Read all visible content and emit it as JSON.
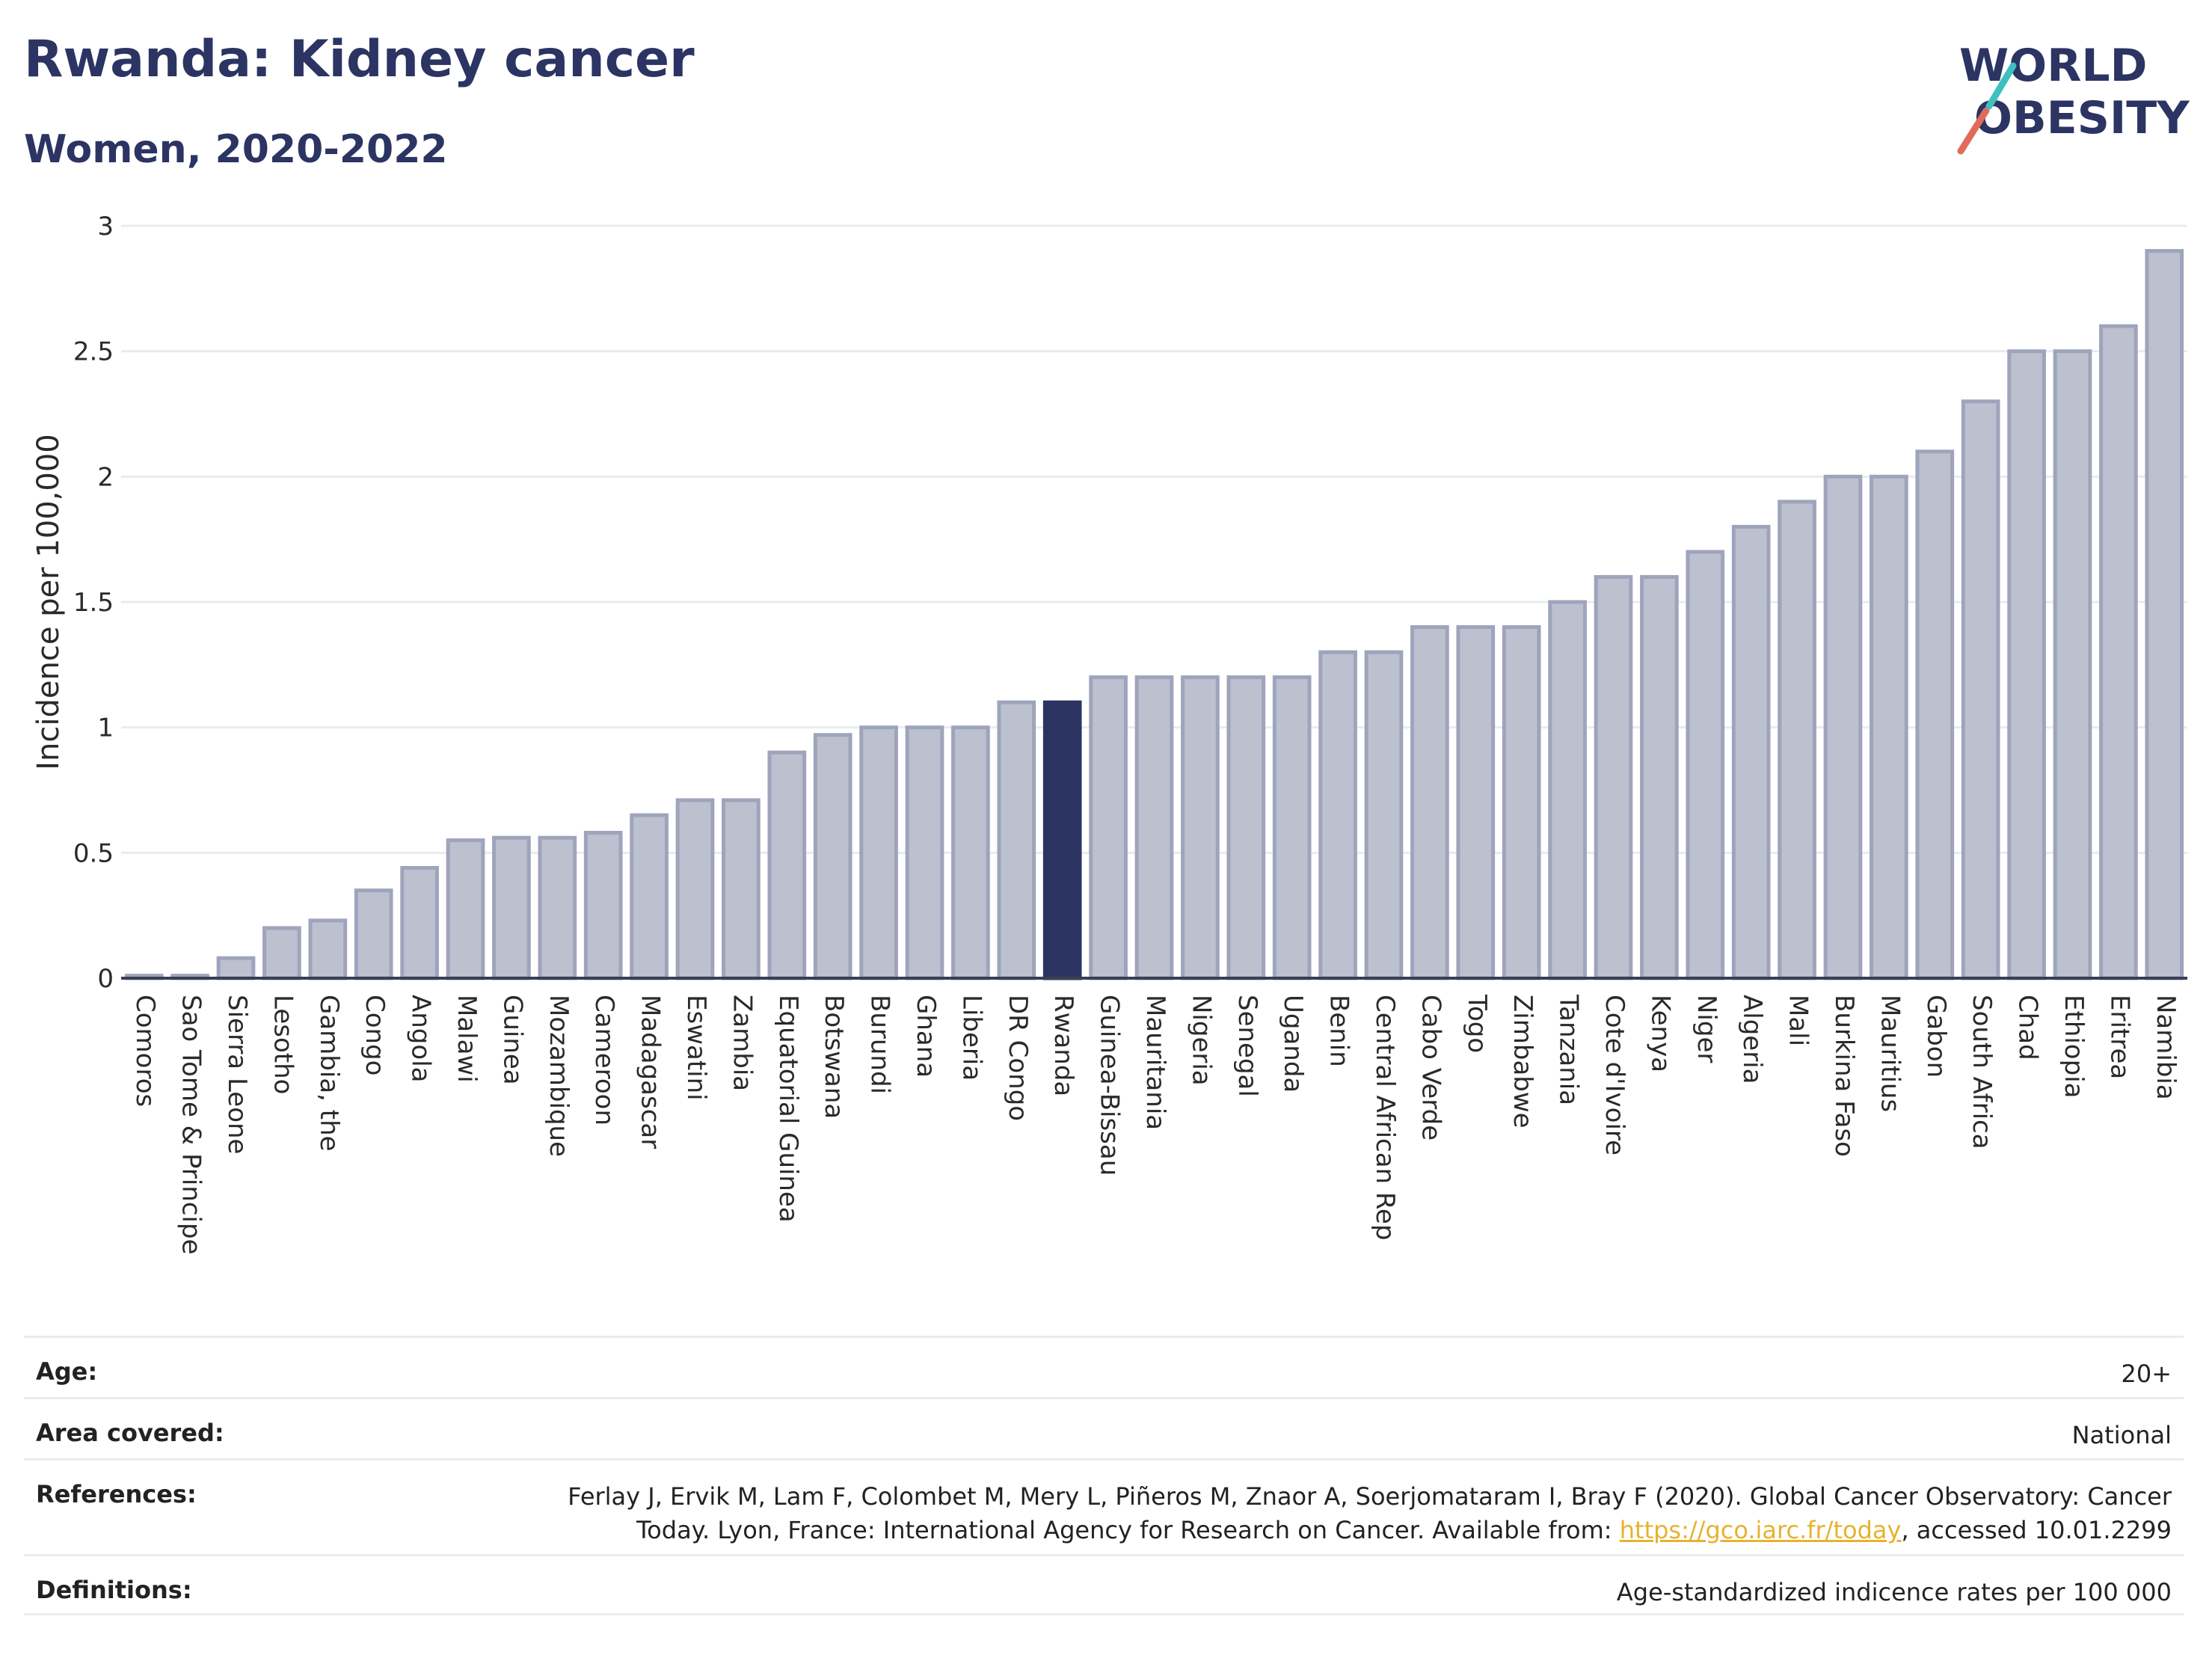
{
  "header": {
    "title": "Rwanda: Kidney cancer",
    "subtitle": "Women, 2020-2022"
  },
  "logo": {
    "line1": "WORLD",
    "line2": "OBESITY"
  },
  "colors": {
    "highlight": "#2b3462",
    "bar_fill": "#bcc0cf",
    "bar_stroke": "#9ea4bb",
    "grid": "#e8ecef"
  },
  "chart_data": {
    "type": "bar",
    "ylabel": "Incidence per 100,000",
    "xlabel": "",
    "ylim": [
      0,
      3
    ],
    "yticks": [
      0,
      0.5,
      1,
      1.5,
      2,
      2.5,
      3
    ],
    "ytick_labels": [
      "0",
      "0.5",
      "1",
      "1.5",
      "2",
      "2.5",
      "3"
    ],
    "highlight": "Rwanda",
    "grid": true,
    "categories": [
      "Comoros",
      "Sao Tome & Principe",
      "Sierra Leone",
      "Lesotho",
      "Gambia, the",
      "Congo",
      "Angola",
      "Malawi",
      "Guinea",
      "Mozambique",
      "Cameroon",
      "Madagascar",
      "Eswatini",
      "Zambia",
      "Equatorial Guinea",
      "Botswana",
      "Burundi",
      "Ghana",
      "Liberia",
      "DR Congo",
      "Rwanda",
      "Guinea-Bissau",
      "Mauritania",
      "Nigeria",
      "Senegal",
      "Uganda",
      "Benin",
      "Central African Rep",
      "Cabo Verde",
      "Togo",
      "Zimbabwe",
      "Tanzania",
      "Cote d'Ivoire",
      "Kenya",
      "Niger",
      "Algeria",
      "Mali",
      "Burkina Faso",
      "Mauritius",
      "Gabon",
      "South Africa",
      "Chad",
      "Ethiopia",
      "Eritrea",
      "Namibia"
    ],
    "values": [
      0.01,
      0.01,
      0.08,
      0.2,
      0.23,
      0.35,
      0.44,
      0.55,
      0.56,
      0.56,
      0.58,
      0.65,
      0.71,
      0.71,
      0.9,
      0.97,
      1.0,
      1.0,
      1.0,
      1.1,
      1.1,
      1.2,
      1.2,
      1.2,
      1.2,
      1.2,
      1.3,
      1.3,
      1.4,
      1.4,
      1.4,
      1.5,
      1.6,
      1.6,
      1.7,
      1.8,
      1.9,
      2.0,
      2.0,
      2.1,
      2.3,
      2.5,
      2.5,
      2.6,
      2.9
    ]
  },
  "info": {
    "age_label": "Age:",
    "age_value": "20+",
    "area_label": "Area covered:",
    "area_value": "National",
    "references_label": "References:",
    "references_text_1": "Ferlay J, Ervik M, Lam F, Colombet M, Mery L, Piñeros M, Znaor A, Soerjomataram I, Bray F (2020). Global Cancer Observatory: Cancer Today. Lyon, France: International Agency for Research on Cancer. Available from: ",
    "references_link": "https://gco.iarc.fr/today",
    "references_text_2": ", accessed 10.01.2299",
    "definitions_label": "Definitions:",
    "definitions_value": "Age-standardized indicence rates per 100 000"
  }
}
